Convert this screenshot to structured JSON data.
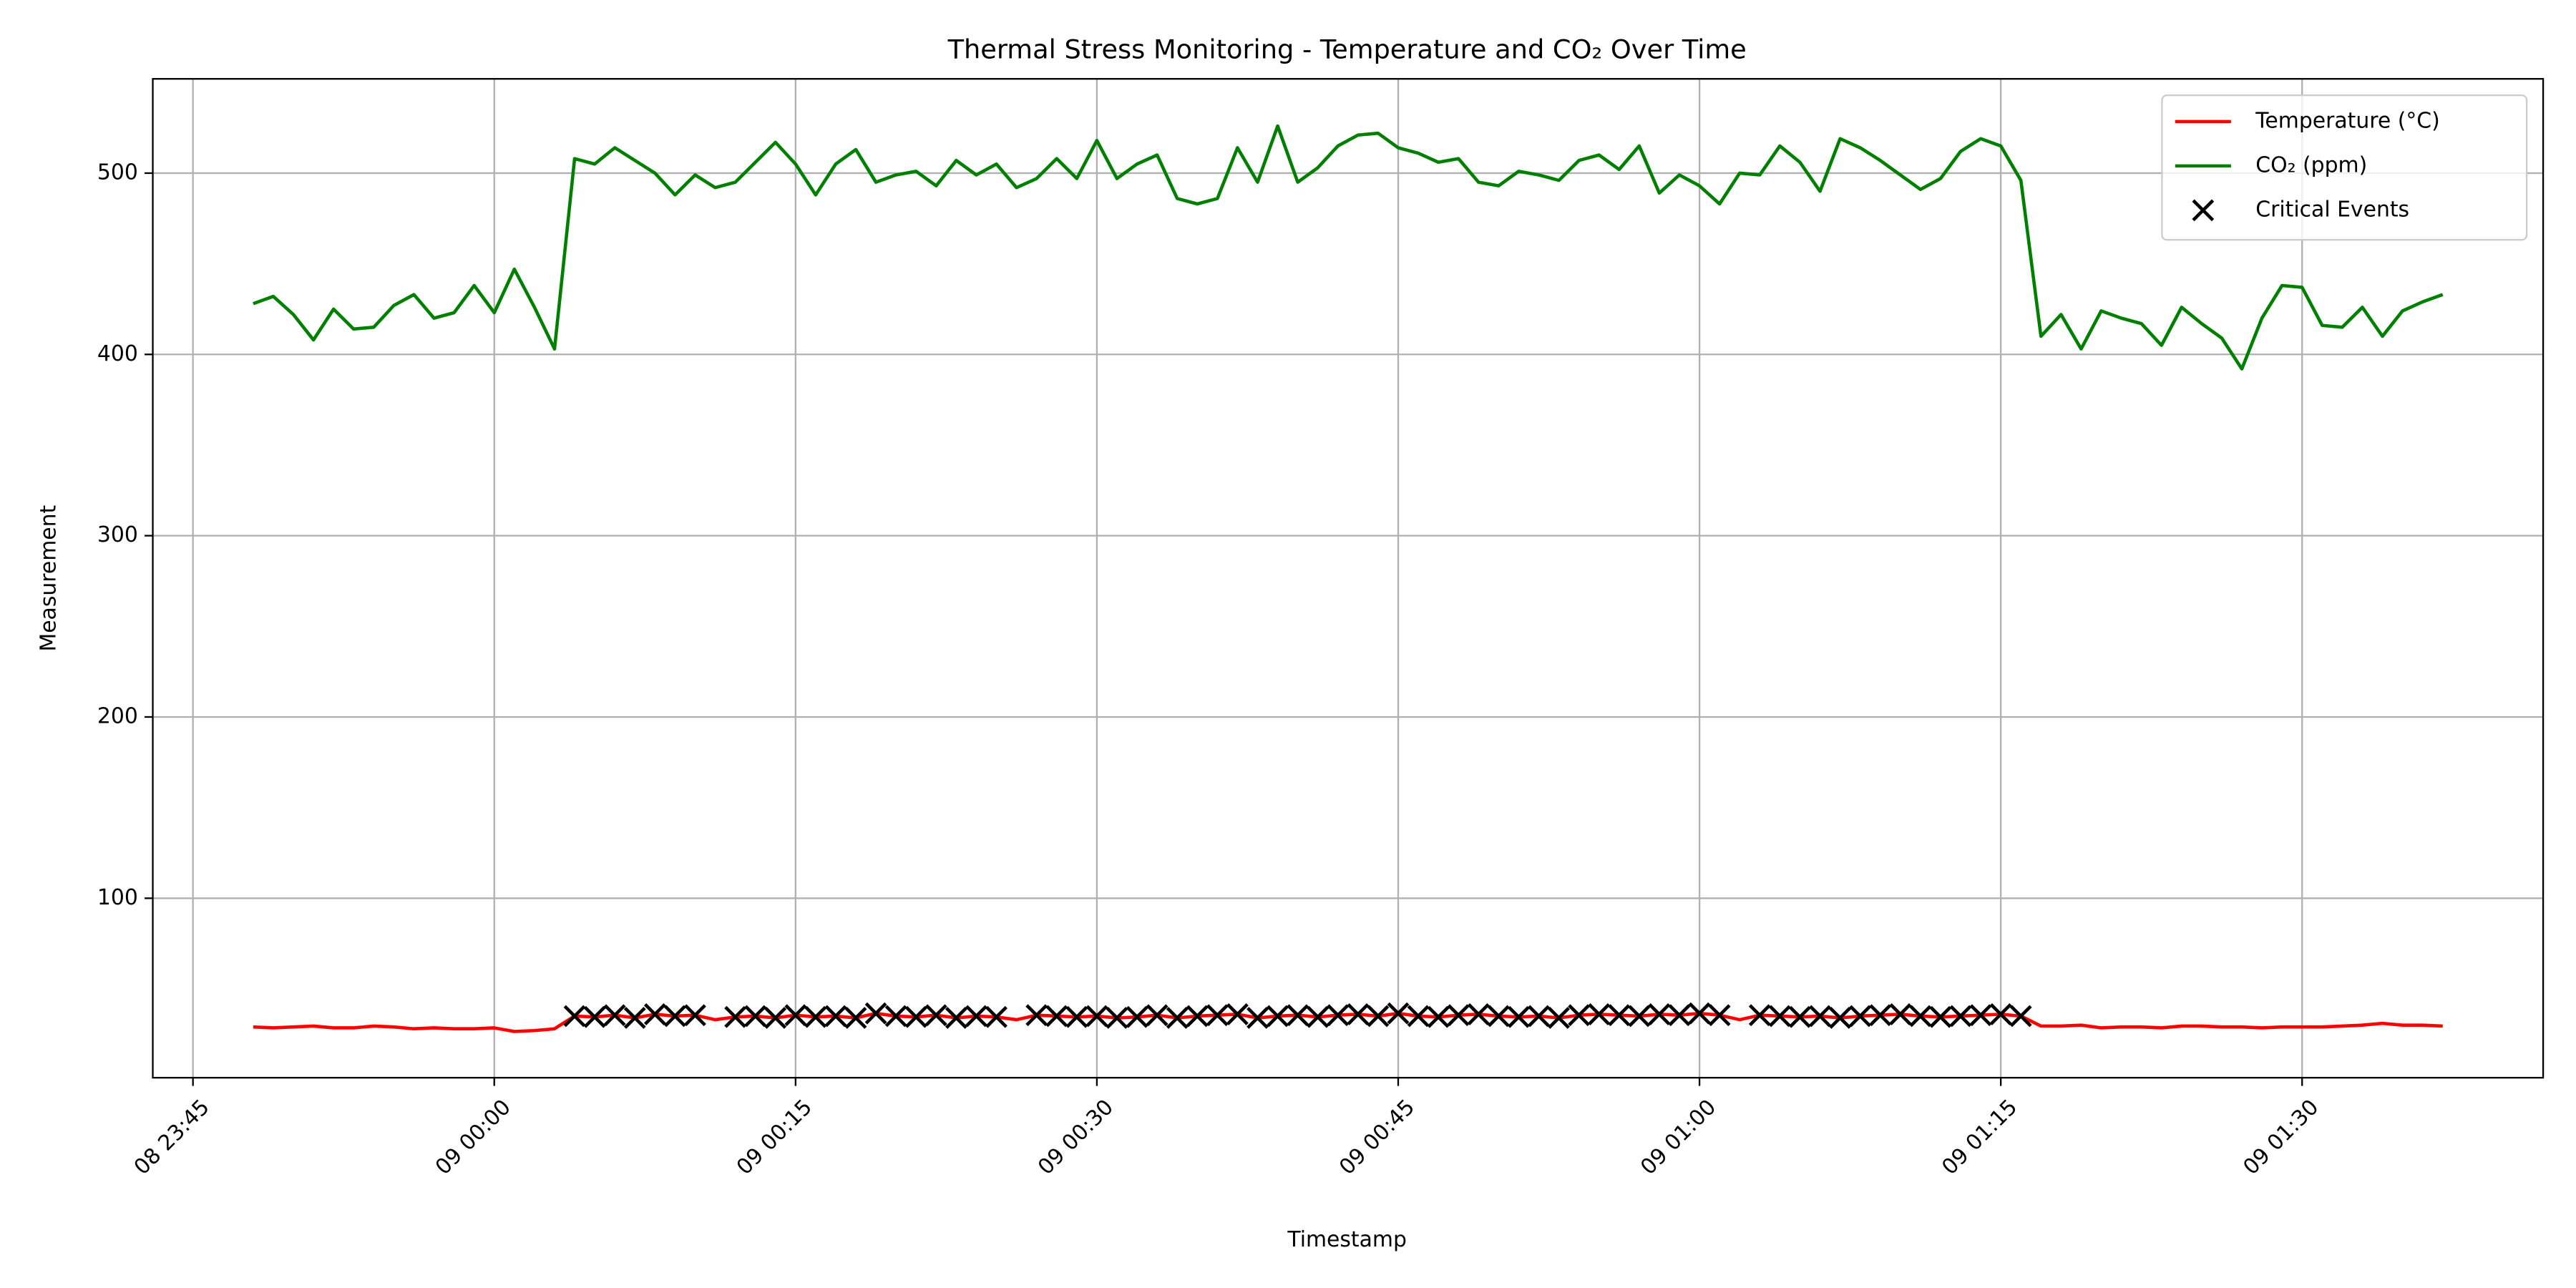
{
  "chart_data": {
    "type": "line",
    "title": "Thermal Stress Monitoring - Temperature and CO₂ Over Time",
    "x_label": "Timestamp",
    "y_label": "Measurement",
    "x": [
      "08 23:48",
      "08 23:49",
      "08 23:50",
      "08 23:51",
      "08 23:52",
      "08 23:53",
      "08 23:54",
      "08 23:55",
      "08 23:56",
      "08 23:57",
      "08 23:58",
      "08 23:59",
      "09 00:00",
      "09 00:01",
      "09 00:02",
      "09 00:03",
      "09 00:04",
      "09 00:05",
      "09 00:06",
      "09 00:07",
      "09 00:08",
      "09 00:09",
      "09 00:10",
      "09 00:11",
      "09 00:12",
      "09 00:13",
      "09 00:14",
      "09 00:15",
      "09 00:16",
      "09 00:17",
      "09 00:18",
      "09 00:19",
      "09 00:20",
      "09 00:21",
      "09 00:22",
      "09 00:23",
      "09 00:24",
      "09 00:25",
      "09 00:26",
      "09 00:27",
      "09 00:28",
      "09 00:29",
      "09 00:30",
      "09 00:31",
      "09 00:32",
      "09 00:33",
      "09 00:34",
      "09 00:35",
      "09 00:36",
      "09 00:37",
      "09 00:38",
      "09 00:39",
      "09 00:40",
      "09 00:41",
      "09 00:42",
      "09 00:43",
      "09 00:44",
      "09 00:45",
      "09 00:46",
      "09 00:47",
      "09 00:48",
      "09 00:49",
      "09 00:50",
      "09 00:51",
      "09 00:52",
      "09 00:53",
      "09 00:54",
      "09 00:55",
      "09 00:56",
      "09 00:57",
      "09 00:58",
      "09 00:59",
      "09 01:00",
      "09 01:01",
      "09 01:02",
      "09 01:03",
      "09 01:04",
      "09 01:05",
      "09 01:06",
      "09 01:07",
      "09 01:08",
      "09 01:09",
      "09 01:10",
      "09 01:11",
      "09 01:12",
      "09 01:13",
      "09 01:14",
      "09 01:15",
      "09 01:16",
      "09 01:17",
      "09 01:18",
      "09 01:19",
      "09 01:20",
      "09 01:21",
      "09 01:22",
      "09 01:23",
      "09 01:24",
      "09 01:25",
      "09 01:26",
      "09 01:27",
      "09 01:28",
      "09 01:29",
      "09 01:30",
      "09 01:31",
      "09 01:32",
      "09 01:33",
      "09 01:34",
      "09 01:35",
      "09 01:36",
      "09 01:37"
    ],
    "series": [
      {
        "name": "Temperature (°C)",
        "type": "line",
        "color": "#ff0000",
        "values": [
          29,
          28.5,
          29,
          29.5,
          28.5,
          28.5,
          29.5,
          29,
          28,
          28.5,
          28,
          28,
          28.5,
          26.5,
          27,
          28,
          35,
          34.5,
          35.5,
          34,
          36,
          35,
          35.5,
          33,
          34.5,
          35,
          34,
          35.5,
          34.5,
          35,
          34,
          36.5,
          35,
          34.5,
          35.5,
          34,
          35,
          34.5,
          33,
          35.5,
          35,
          34.5,
          35,
          34,
          34.5,
          35.5,
          34,
          35,
          35.5,
          36,
          34,
          35,
          35.5,
          34.5,
          35.5,
          36,
          35,
          36.5,
          35,
          34.5,
          35.5,
          36,
          35,
          34.5,
          35,
          34,
          35.5,
          36,
          35.5,
          35,
          36,
          35.5,
          36.5,
          35.5,
          33,
          35.5,
          35,
          34.5,
          35,
          34,
          35,
          35.5,
          36,
          35,
          34.5,
          35,
          35.5,
          36,
          35,
          29.5,
          29.5,
          30,
          28.5,
          29,
          29,
          28.5,
          29.5,
          29.5,
          29,
          29,
          28.5,
          29,
          29,
          29,
          29.5,
          30,
          31,
          30,
          30,
          29.5
        ]
      },
      {
        "name": "CO₂ (ppm)",
        "type": "line",
        "color": "#008000",
        "values": [
          428,
          432,
          422,
          408,
          425,
          414,
          415,
          427,
          433,
          420,
          423,
          438,
          423,
          447,
          426,
          403,
          508,
          505,
          514,
          507,
          500,
          488,
          499,
          492,
          495,
          506,
          517,
          505,
          488,
          505,
          513,
          495,
          499,
          501,
          493,
          507,
          499,
          505,
          492,
          497,
          508,
          497,
          518,
          497,
          505,
          510,
          486,
          483,
          486,
          514,
          495,
          526,
          495,
          503,
          515,
          521,
          522,
          514,
          511,
          506,
          508,
          495,
          493,
          501,
          499,
          496,
          507,
          510,
          502,
          515,
          489,
          499,
          493,
          483,
          500,
          499,
          515,
          506,
          490,
          519,
          514,
          507,
          499,
          491,
          497,
          512,
          519,
          515,
          496,
          410,
          422,
          403,
          424,
          420,
          417,
          405,
          426,
          417,
          409,
          392,
          420,
          438,
          437,
          416,
          415,
          426,
          410,
          424,
          429,
          433
        ]
      },
      {
        "name": "Critical Events",
        "type": "scatter",
        "color": "#000000",
        "x": [
          "09 00:04",
          "09 00:05",
          "09 00:06",
          "09 00:07",
          "09 00:08",
          "09 00:09",
          "09 00:10",
          "09 00:12",
          "09 00:13",
          "09 00:14",
          "09 00:15",
          "09 00:16",
          "09 00:17",
          "09 00:18",
          "09 00:19",
          "09 00:20",
          "09 00:21",
          "09 00:22",
          "09 00:23",
          "09 00:24",
          "09 00:25",
          "09 00:27",
          "09 00:28",
          "09 00:29",
          "09 00:30",
          "09 00:31",
          "09 00:32",
          "09 00:33",
          "09 00:34",
          "09 00:35",
          "09 00:36",
          "09 00:37",
          "09 00:38",
          "09 00:39",
          "09 00:40",
          "09 00:41",
          "09 00:42",
          "09 00:43",
          "09 00:44",
          "09 00:45",
          "09 00:46",
          "09 00:47",
          "09 00:48",
          "09 00:49",
          "09 00:50",
          "09 00:51",
          "09 00:52",
          "09 00:53",
          "09 00:54",
          "09 00:55",
          "09 00:56",
          "09 00:57",
          "09 00:58",
          "09 00:59",
          "09 01:00",
          "09 01:01",
          "09 01:03",
          "09 01:04",
          "09 01:05",
          "09 01:06",
          "09 01:07",
          "09 01:08",
          "09 01:09",
          "09 01:10",
          "09 01:11",
          "09 01:12",
          "09 01:13",
          "09 01:14",
          "09 01:15",
          "09 01:16"
        ],
        "values": [
          35,
          34.5,
          35.5,
          34,
          36,
          35,
          35.5,
          34.5,
          35,
          34,
          35.5,
          34.5,
          35,
          34,
          36.5,
          35,
          34.5,
          35.5,
          34,
          35,
          34.5,
          35.5,
          35,
          34.5,
          35,
          34,
          34.5,
          35.5,
          34,
          35,
          35.5,
          36,
          34,
          35,
          35.5,
          34.5,
          35.5,
          36,
          35,
          36.5,
          35,
          34.5,
          35.5,
          36,
          35,
          34.5,
          35,
          34,
          35.5,
          36,
          35.5,
          35,
          36,
          35.5,
          36.5,
          35.5,
          35.5,
          35,
          34.5,
          35,
          34,
          35,
          35.5,
          36,
          35,
          34.5,
          35,
          35.5,
          36,
          35
        ]
      }
    ],
    "xlim": [
      "08 23:43",
      "09 01:42"
    ],
    "xticks": [
      "08 23:45",
      "09 00:00",
      "09 00:15",
      "09 00:30",
      "09 00:45",
      "09 01:00",
      "09 01:15",
      "09 01:30"
    ],
    "ylim": [
      1,
      552
    ],
    "yticks": [
      100,
      200,
      300,
      400,
      500
    ],
    "grid": true,
    "legend": "upper right"
  }
}
